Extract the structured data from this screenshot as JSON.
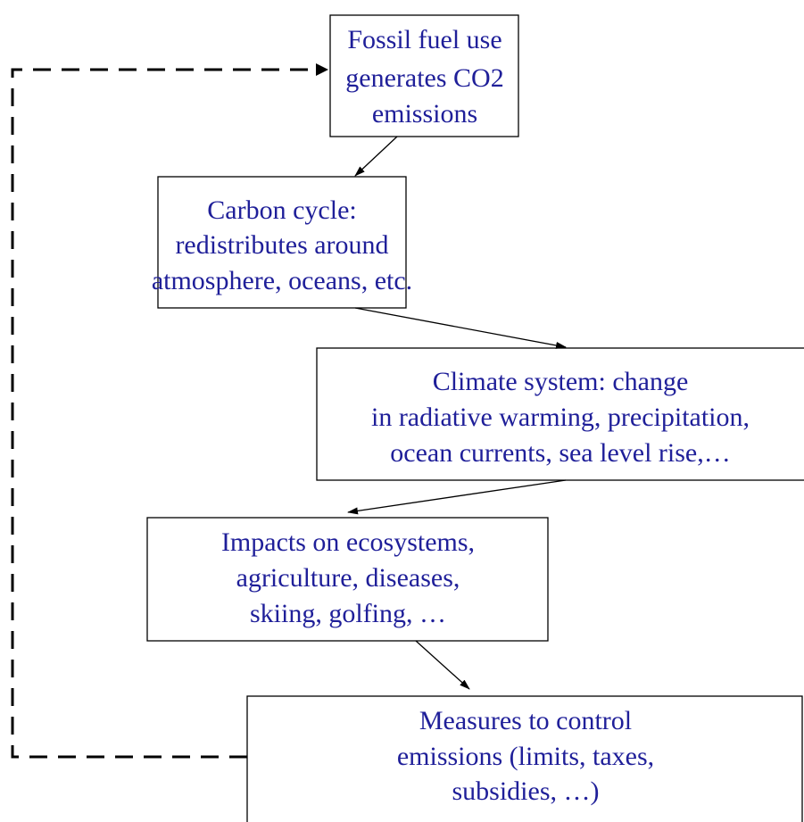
{
  "nodes": [
    {
      "lines": [
        "Fossil fuel use",
        "generates CO2",
        "emissions"
      ]
    },
    {
      "lines": [
        "Carbon cycle:",
        "redistributes around",
        "atmosphere, oceans, etc."
      ]
    },
    {
      "lines": [
        "Climate system: change",
        "in radiative warming, precipitation,",
        "ocean currents, sea level rise,…"
      ]
    },
    {
      "lines": [
        "Impacts on ecosystems,",
        "agriculture, diseases,",
        "skiing, golfing, …"
      ]
    },
    {
      "lines": [
        "Measures to control",
        "emissions (limits, taxes,",
        "subsidies, …)"
      ]
    }
  ]
}
